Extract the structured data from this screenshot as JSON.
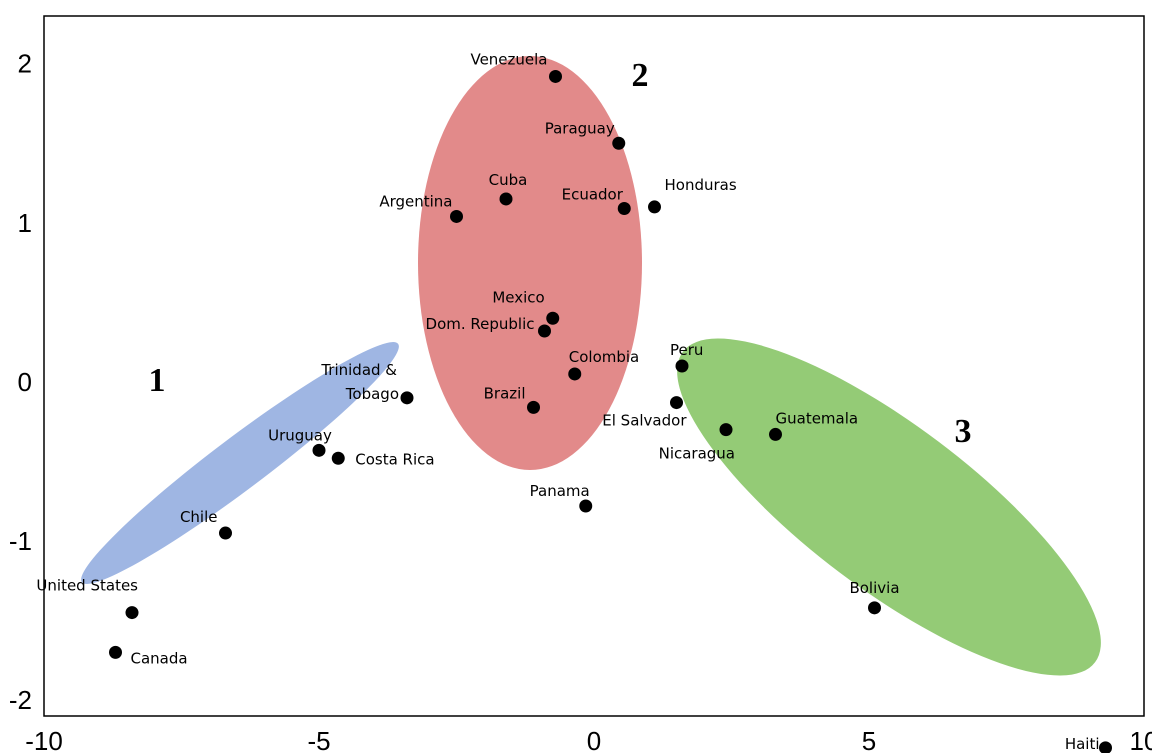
{
  "chart_data": {
    "type": "scatter",
    "title": "",
    "xlabel": "",
    "ylabel": "",
    "xlim": [
      -10,
      10
    ],
    "ylim": [
      -2.1,
      2.3
    ],
    "grid": false,
    "x_ticks": [
      {
        "value": -10,
        "label": "-10"
      },
      {
        "value": -5,
        "label": "-5"
      },
      {
        "value": 0,
        "label": "0"
      },
      {
        "value": 5,
        "label": "5"
      },
      {
        "value": 10,
        "label": "10"
      }
    ],
    "y_ticks": [
      {
        "value": 2,
        "label": "2"
      },
      {
        "value": 1,
        "label": "1"
      },
      {
        "value": 0,
        "label": "0"
      },
      {
        "value": -1,
        "label": "-1"
      },
      {
        "value": -2,
        "label": "-2"
      }
    ],
    "clusters": [
      {
        "label": "1",
        "color": "#9fb6e3",
        "members": [
          "Trinidad & Tobago",
          "Uruguay",
          "Costa Rica",
          "Chile",
          "United States",
          "Canada"
        ]
      },
      {
        "label": "2",
        "color": "#e28a8a",
        "members": [
          "Venezuela",
          "Paraguay",
          "Cuba",
          "Ecuador",
          "Honduras",
          "Argentina",
          "Mexico",
          "Dom. Republic",
          "Colombia",
          "Brazil",
          "Panama"
        ]
      },
      {
        "label": "3",
        "color": "#94cb76",
        "members": [
          "Peru",
          "El Salvador",
          "Nicaragua",
          "Guatemala",
          "Bolivia",
          "Haiti"
        ]
      }
    ],
    "points": [
      {
        "name": "Venezuela",
        "x": -0.7,
        "y": 1.92
      },
      {
        "name": "Paraguay",
        "x": 0.45,
        "y": 1.5
      },
      {
        "name": "Cuba",
        "x": -1.6,
        "y": 1.15
      },
      {
        "name": "Ecuador",
        "x": 0.55,
        "y": 1.09
      },
      {
        "name": "Honduras",
        "x": 1.1,
        "y": 1.1
      },
      {
        "name": "Argentina",
        "x": -2.5,
        "y": 1.04
      },
      {
        "name": "Mexico",
        "x": -0.75,
        "y": 0.4
      },
      {
        "name": "Dom. Republic",
        "x": -0.9,
        "y": 0.32
      },
      {
        "name": "Colombia",
        "x": -0.35,
        "y": 0.05
      },
      {
        "name": "Brazil",
        "x": -1.1,
        "y": -0.16
      },
      {
        "name": "Panama",
        "x": -0.15,
        "y": -0.78
      },
      {
        "name": "Trinidad & Tobago",
        "x": -3.4,
        "y": -0.1
      },
      {
        "name": "Uruguay",
        "x": -5.0,
        "y": -0.43
      },
      {
        "name": "Costa Rica",
        "x": -4.65,
        "y": -0.48
      },
      {
        "name": "Chile",
        "x": -6.7,
        "y": -0.95
      },
      {
        "name": "United States",
        "x": -8.4,
        "y": -1.45
      },
      {
        "name": "Canada",
        "x": -8.7,
        "y": -1.7
      },
      {
        "name": "Peru",
        "x": 1.6,
        "y": 0.1
      },
      {
        "name": "El Salvador",
        "x": 1.5,
        "y": -0.13
      },
      {
        "name": "Nicaragua",
        "x": 2.4,
        "y": -0.3
      },
      {
        "name": "Guatemala",
        "x": 3.3,
        "y": -0.33
      },
      {
        "name": "Bolivia",
        "x": 5.1,
        "y": -1.42
      },
      {
        "name": "Haiti",
        "x": 9.3,
        "y": -2.3
      }
    ]
  }
}
